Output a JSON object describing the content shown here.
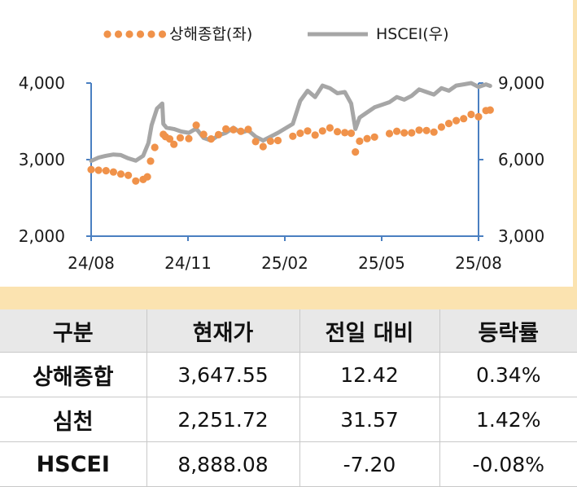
{
  "chart_data": {
    "type": "line",
    "x_ticks": [
      "24/08",
      "24/11",
      "25/02",
      "25/05",
      "25/08"
    ],
    "y_left": {
      "ticks": [
        "4,000",
        "3,000",
        "2,000"
      ],
      "range": [
        2000,
        4000
      ]
    },
    "y_right": {
      "ticks": [
        "9,000",
        "6,000",
        "3,000"
      ],
      "range": [
        3000,
        9000
      ]
    },
    "colors": {
      "shanghai": "#f0924a",
      "hscei": "#a6a6a6",
      "axis": "#4a7fc1"
    },
    "series": [
      {
        "name": "상해종합(좌)",
        "axis": "left",
        "style": "dotted",
        "values": [
          [
            "2024-08-01",
            2870
          ],
          [
            "2024-08-08",
            2862
          ],
          [
            "2024-08-15",
            2855
          ],
          [
            "2024-08-22",
            2838
          ],
          [
            "2024-08-29",
            2812
          ],
          [
            "2024-09-05",
            2795
          ],
          [
            "2024-09-12",
            2720
          ],
          [
            "2024-09-19",
            2740
          ],
          [
            "2024-09-23",
            2775
          ],
          [
            "2024-09-26",
            2980
          ],
          [
            "2024-09-30",
            3160
          ],
          [
            "2024-10-08",
            3330
          ],
          [
            "2024-10-10",
            3300
          ],
          [
            "2024-10-14",
            3270
          ],
          [
            "2024-10-18",
            3200
          ],
          [
            "2024-10-24",
            3285
          ],
          [
            "2024-11-01",
            3275
          ],
          [
            "2024-11-08",
            3450
          ],
          [
            "2024-11-15",
            3330
          ],
          [
            "2024-11-22",
            3270
          ],
          [
            "2024-11-29",
            3325
          ],
          [
            "2024-12-06",
            3400
          ],
          [
            "2024-12-13",
            3390
          ],
          [
            "2024-12-20",
            3370
          ],
          [
            "2024-12-27",
            3395
          ],
          [
            "2025-01-03",
            3235
          ],
          [
            "2025-01-10",
            3170
          ],
          [
            "2025-01-17",
            3240
          ],
          [
            "2025-01-24",
            3250
          ],
          [
            "2025-02-07",
            3305
          ],
          [
            "2025-02-14",
            3345
          ],
          [
            "2025-02-21",
            3375
          ],
          [
            "2025-02-28",
            3320
          ],
          [
            "2025-03-07",
            3375
          ],
          [
            "2025-03-14",
            3415
          ],
          [
            "2025-03-21",
            3365
          ],
          [
            "2025-03-28",
            3352
          ],
          [
            "2025-04-03",
            3345
          ],
          [
            "2025-04-07",
            3100
          ],
          [
            "2025-04-11",
            3240
          ],
          [
            "2025-04-18",
            3275
          ],
          [
            "2025-04-25",
            3295
          ],
          [
            "2025-05-09",
            3340
          ],
          [
            "2025-05-16",
            3370
          ],
          [
            "2025-05-23",
            3350
          ],
          [
            "2025-05-30",
            3350
          ],
          [
            "2025-06-06",
            3385
          ],
          [
            "2025-06-13",
            3380
          ],
          [
            "2025-06-20",
            3360
          ],
          [
            "2025-06-27",
            3425
          ],
          [
            "2025-07-04",
            3472
          ],
          [
            "2025-07-11",
            3510
          ],
          [
            "2025-07-18",
            3535
          ],
          [
            "2025-07-25",
            3590
          ],
          [
            "2025-08-01",
            3560
          ],
          [
            "2025-08-08",
            3640
          ],
          [
            "2025-08-12",
            3648
          ]
        ]
      },
      {
        "name": "HSCEI(우)",
        "axis": "right",
        "style": "solid",
        "values": [
          [
            "2024-08-01",
            5950
          ],
          [
            "2024-08-08",
            6080
          ],
          [
            "2024-08-15",
            6150
          ],
          [
            "2024-08-22",
            6200
          ],
          [
            "2024-08-29",
            6180
          ],
          [
            "2024-09-05",
            6050
          ],
          [
            "2024-09-12",
            5960
          ],
          [
            "2024-09-19",
            6150
          ],
          [
            "2024-09-24",
            6650
          ],
          [
            "2024-09-27",
            7350
          ],
          [
            "2024-10-02",
            8000
          ],
          [
            "2024-10-07",
            8200
          ],
          [
            "2024-10-08",
            7400
          ],
          [
            "2024-10-11",
            7250
          ],
          [
            "2024-10-18",
            7200
          ],
          [
            "2024-10-25",
            7100
          ],
          [
            "2024-11-01",
            7050
          ],
          [
            "2024-11-08",
            7220
          ],
          [
            "2024-11-15",
            6850
          ],
          [
            "2024-11-22",
            6750
          ],
          [
            "2024-11-29",
            6950
          ],
          [
            "2024-12-06",
            7050
          ],
          [
            "2024-12-13",
            7250
          ],
          [
            "2024-12-20",
            7050
          ],
          [
            "2024-12-27",
            7150
          ],
          [
            "2025-01-03",
            6900
          ],
          [
            "2025-01-10",
            6750
          ],
          [
            "2025-01-17",
            6900
          ],
          [
            "2025-01-24",
            7050
          ],
          [
            "2025-02-07",
            7400
          ],
          [
            "2025-02-14",
            8300
          ],
          [
            "2025-02-21",
            8700
          ],
          [
            "2025-02-28",
            8450
          ],
          [
            "2025-03-07",
            8900
          ],
          [
            "2025-03-14",
            8800
          ],
          [
            "2025-03-21",
            8600
          ],
          [
            "2025-03-28",
            8650
          ],
          [
            "2025-04-03",
            8200
          ],
          [
            "2025-04-07",
            7200
          ],
          [
            "2025-04-11",
            7650
          ],
          [
            "2025-04-18",
            7850
          ],
          [
            "2025-04-25",
            8050
          ],
          [
            "2025-05-09",
            8250
          ],
          [
            "2025-05-16",
            8450
          ],
          [
            "2025-05-23",
            8350
          ],
          [
            "2025-05-30",
            8500
          ],
          [
            "2025-06-06",
            8750
          ],
          [
            "2025-06-13",
            8650
          ],
          [
            "2025-06-20",
            8550
          ],
          [
            "2025-06-27",
            8800
          ],
          [
            "2025-07-04",
            8700
          ],
          [
            "2025-07-11",
            8900
          ],
          [
            "2025-07-18",
            8950
          ],
          [
            "2025-07-25",
            9000
          ],
          [
            "2025-08-01",
            8850
          ],
          [
            "2025-08-08",
            8950
          ],
          [
            "2025-08-12",
            8888
          ]
        ]
      }
    ]
  },
  "table": {
    "headers": [
      "구분",
      "현재가",
      "전일 대비",
      "등락률"
    ],
    "rows": [
      {
        "name": "상해종합",
        "price": "3,647.55",
        "change": "12.42",
        "rate": "0.34%"
      },
      {
        "name": "심천",
        "price": "2,251.72",
        "change": "31.57",
        "rate": "1.42%"
      },
      {
        "name": "HSCEI",
        "price": "8,888.08",
        "change": "-7.20",
        "rate": "-0.08%"
      }
    ]
  }
}
